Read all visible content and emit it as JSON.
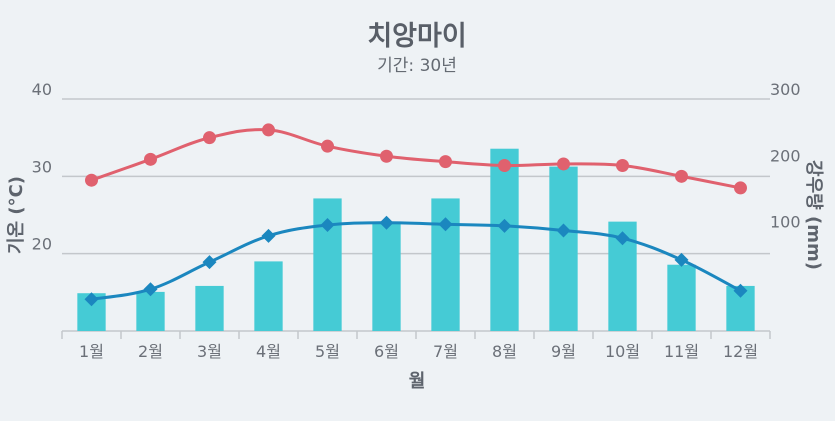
{
  "chart_data": {
    "type": "bar",
    "title": "치앙마이",
    "subtitle": "기간: 30년",
    "xlabel": "월",
    "ylabel_left": "기온 (°C)",
    "ylabel_right": "강우량 (mm)",
    "categories": [
      "1월",
      "2월",
      "3월",
      "4월",
      "5월",
      "6월",
      "7월",
      "8월",
      "9월",
      "10월",
      "11월",
      "12월"
    ],
    "y_left": {
      "min": 10,
      "max": 40,
      "ticks": [
        "20",
        "30",
        "40"
      ]
    },
    "y_right": {
      "min": -50,
      "max": 300,
      "ticks": [
        "100",
        "200",
        "300"
      ]
    },
    "grid": true,
    "legend": "none",
    "series": [
      {
        "type": "bar",
        "axis": "right",
        "color": "#45cbd5",
        "values": [
          7,
          9,
          18,
          55,
          150,
          115,
          150,
          225,
          198,
          115,
          50,
          18
        ]
      },
      {
        "type": "line",
        "axis": "left",
        "marker": "circle",
        "color": "#e0616e",
        "values": [
          29.5,
          32.2,
          35.0,
          36.0,
          33.9,
          32.6,
          31.9,
          31.4,
          31.6,
          31.4,
          30.0,
          28.5
        ]
      },
      {
        "type": "line",
        "axis": "left",
        "marker": "diamond",
        "color": "#1b87bf",
        "values": [
          14.1,
          15.4,
          18.9,
          22.3,
          23.7,
          24.0,
          23.8,
          23.6,
          23.0,
          22.0,
          19.2,
          15.2
        ]
      }
    ]
  }
}
